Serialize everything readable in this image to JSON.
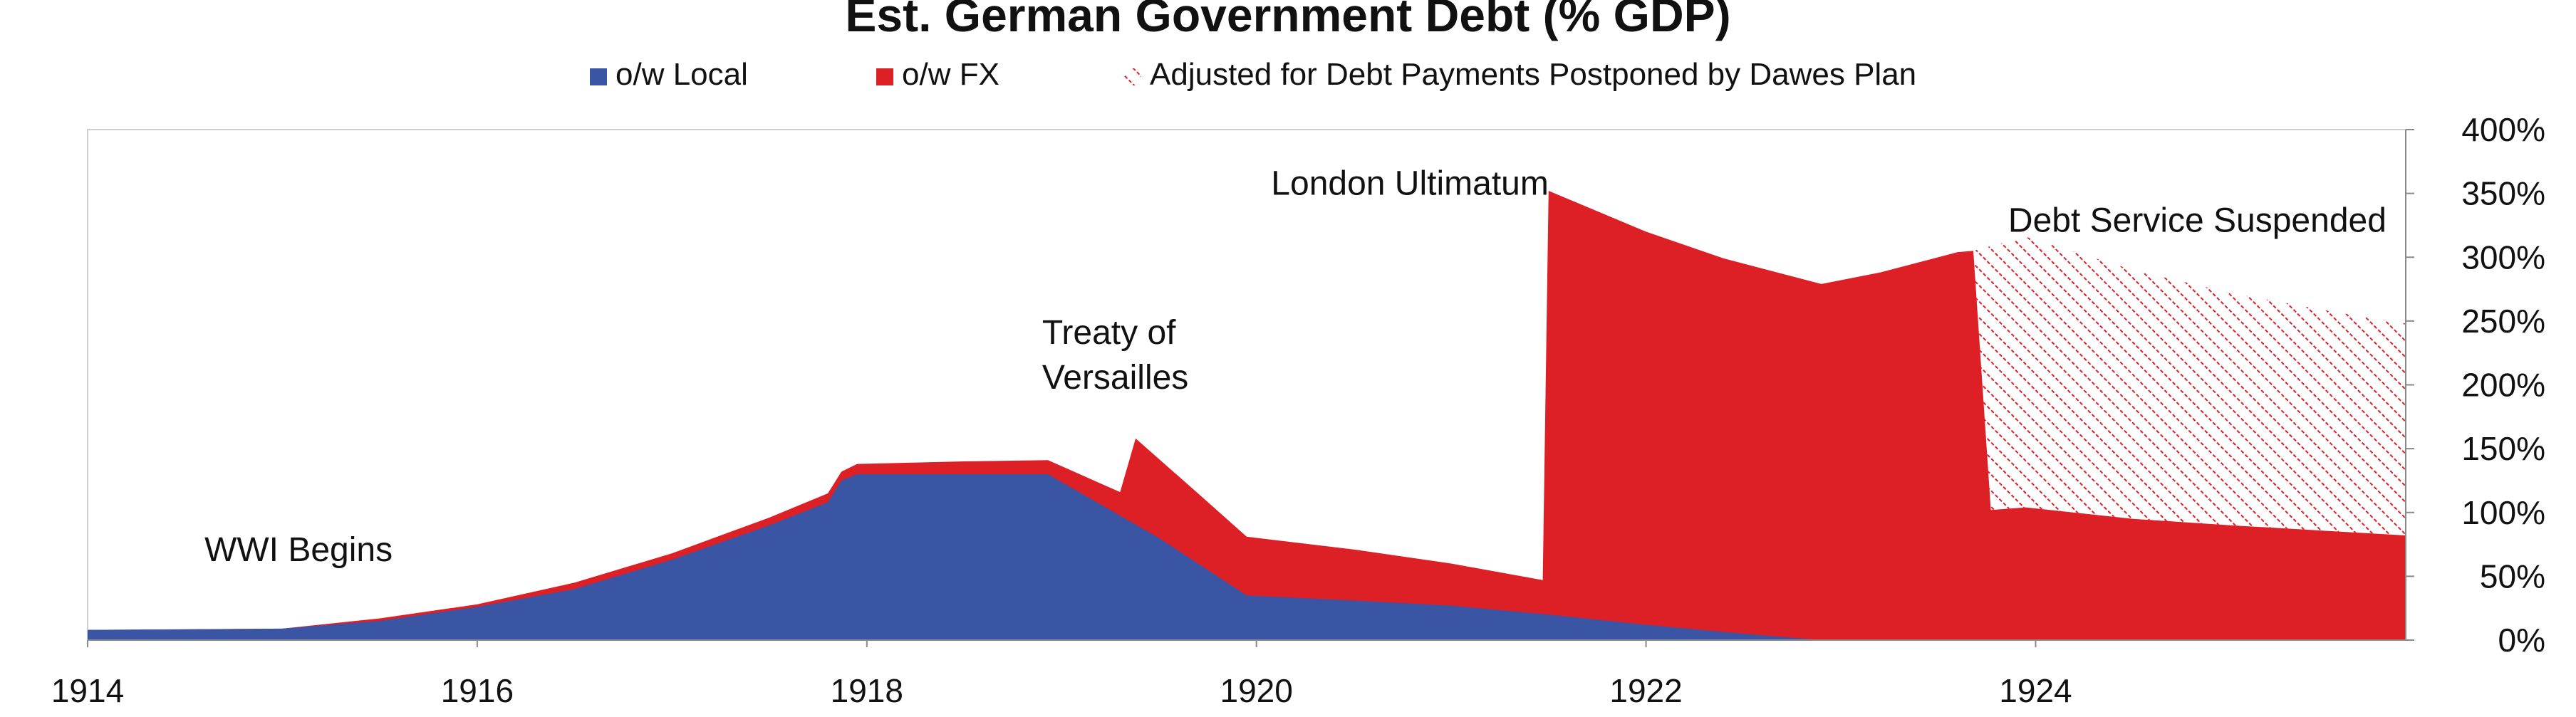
{
  "chart_data": {
    "type": "area",
    "title": "Est. German Government Debt (% GDP)",
    "xlabel": "",
    "ylabel": "",
    "xlim": [
      1914.0,
      1925.9
    ],
    "ylim": [
      0,
      400
    ],
    "x_ticks": [
      {
        "value": 1914,
        "label": "1914"
      },
      {
        "value": 1916,
        "label": "1916"
      },
      {
        "value": 1918,
        "label": "1918"
      },
      {
        "value": 1920,
        "label": "1920"
      },
      {
        "value": 1922,
        "label": "1922"
      },
      {
        "value": 1924,
        "label": "1924"
      }
    ],
    "y_ticks": [
      {
        "value": 0,
        "label": "0%"
      },
      {
        "value": 50,
        "label": "50%"
      },
      {
        "value": 100,
        "label": "100%"
      },
      {
        "value": 150,
        "label": "150%"
      },
      {
        "value": 200,
        "label": "200%"
      },
      {
        "value": 250,
        "label": "250%"
      },
      {
        "value": 300,
        "label": "300%"
      },
      {
        "value": 350,
        "label": "350%"
      },
      {
        "value": 400,
        "label": "400%"
      }
    ],
    "legend_position": "top-center",
    "grid": false,
    "series": [
      {
        "name": "o/w Local",
        "color": "#3A55A4",
        "fill": "solid",
        "points": [
          [
            1914.0,
            8
          ],
          [
            1915.0,
            9
          ],
          [
            1915.5,
            15
          ],
          [
            1916.0,
            26
          ],
          [
            1916.5,
            40
          ],
          [
            1917.0,
            63
          ],
          [
            1917.5,
            90
          ],
          [
            1917.8,
            108
          ],
          [
            1917.87,
            125
          ],
          [
            1917.95,
            130
          ],
          [
            1918.5,
            130
          ],
          [
            1918.93,
            130
          ],
          [
            1919.5,
            80
          ],
          [
            1919.95,
            35
          ],
          [
            1920.5,
            31
          ],
          [
            1921.0,
            27
          ],
          [
            1921.5,
            20
          ],
          [
            1922.0,
            12
          ],
          [
            1922.5,
            5
          ],
          [
            1922.9,
            0
          ],
          [
            1925.9,
            0
          ]
        ]
      },
      {
        "name": "o/w FX",
        "color": "#DD1F26",
        "fill": "solid",
        "stacked_on": "o/w Local",
        "points": [
          [
            1914.0,
            8
          ],
          [
            1915.0,
            9
          ],
          [
            1915.5,
            17
          ],
          [
            1916.0,
            28
          ],
          [
            1916.5,
            45
          ],
          [
            1917.0,
            68
          ],
          [
            1917.5,
            96
          ],
          [
            1917.8,
            115
          ],
          [
            1917.87,
            132
          ],
          [
            1917.95,
            138
          ],
          [
            1918.5,
            140
          ],
          [
            1918.93,
            141
          ],
          [
            1919.3,
            116
          ],
          [
            1919.38,
            158
          ],
          [
            1919.7,
            115
          ],
          [
            1919.95,
            81
          ],
          [
            1920.5,
            71
          ],
          [
            1921.0,
            60
          ],
          [
            1921.4,
            49
          ],
          [
            1921.47,
            47
          ],
          [
            1921.5,
            352
          ],
          [
            1922.0,
            320
          ],
          [
            1922.4,
            299
          ],
          [
            1922.9,
            279
          ],
          [
            1923.2,
            288
          ],
          [
            1923.6,
            304
          ],
          [
            1923.68,
            305
          ],
          [
            1923.77,
            102
          ],
          [
            1923.95,
            104
          ],
          [
            1924.5,
            95
          ],
          [
            1925.0,
            90
          ],
          [
            1925.9,
            82
          ]
        ]
      },
      {
        "name": "Adjusted for Debt Payments Postponed by Dawes Plan",
        "color": "#DD1F26",
        "fill": "hatched",
        "points": [
          [
            1923.68,
            305
          ],
          [
            1923.95,
            316
          ],
          [
            1924.5,
            290
          ],
          [
            1925.0,
            272
          ],
          [
            1925.5,
            258
          ],
          [
            1925.9,
            248
          ]
        ]
      }
    ],
    "annotations": [
      {
        "text": "WWI Begins",
        "x": 1914.6,
        "y": 62,
        "anchor": "start"
      },
      {
        "text": "Treaty of",
        "x": 1918.9,
        "y": 232,
        "anchor": "start"
      },
      {
        "text": "Versailles",
        "x": 1918.9,
        "y": 197,
        "anchor": "start"
      },
      {
        "text": "London Ultimatum",
        "x": 1921.5,
        "y": 349,
        "anchor": "end"
      },
      {
        "text": "Debt Service Suspended",
        "x": 1924.83,
        "y": 320,
        "anchor": "middle"
      }
    ]
  }
}
